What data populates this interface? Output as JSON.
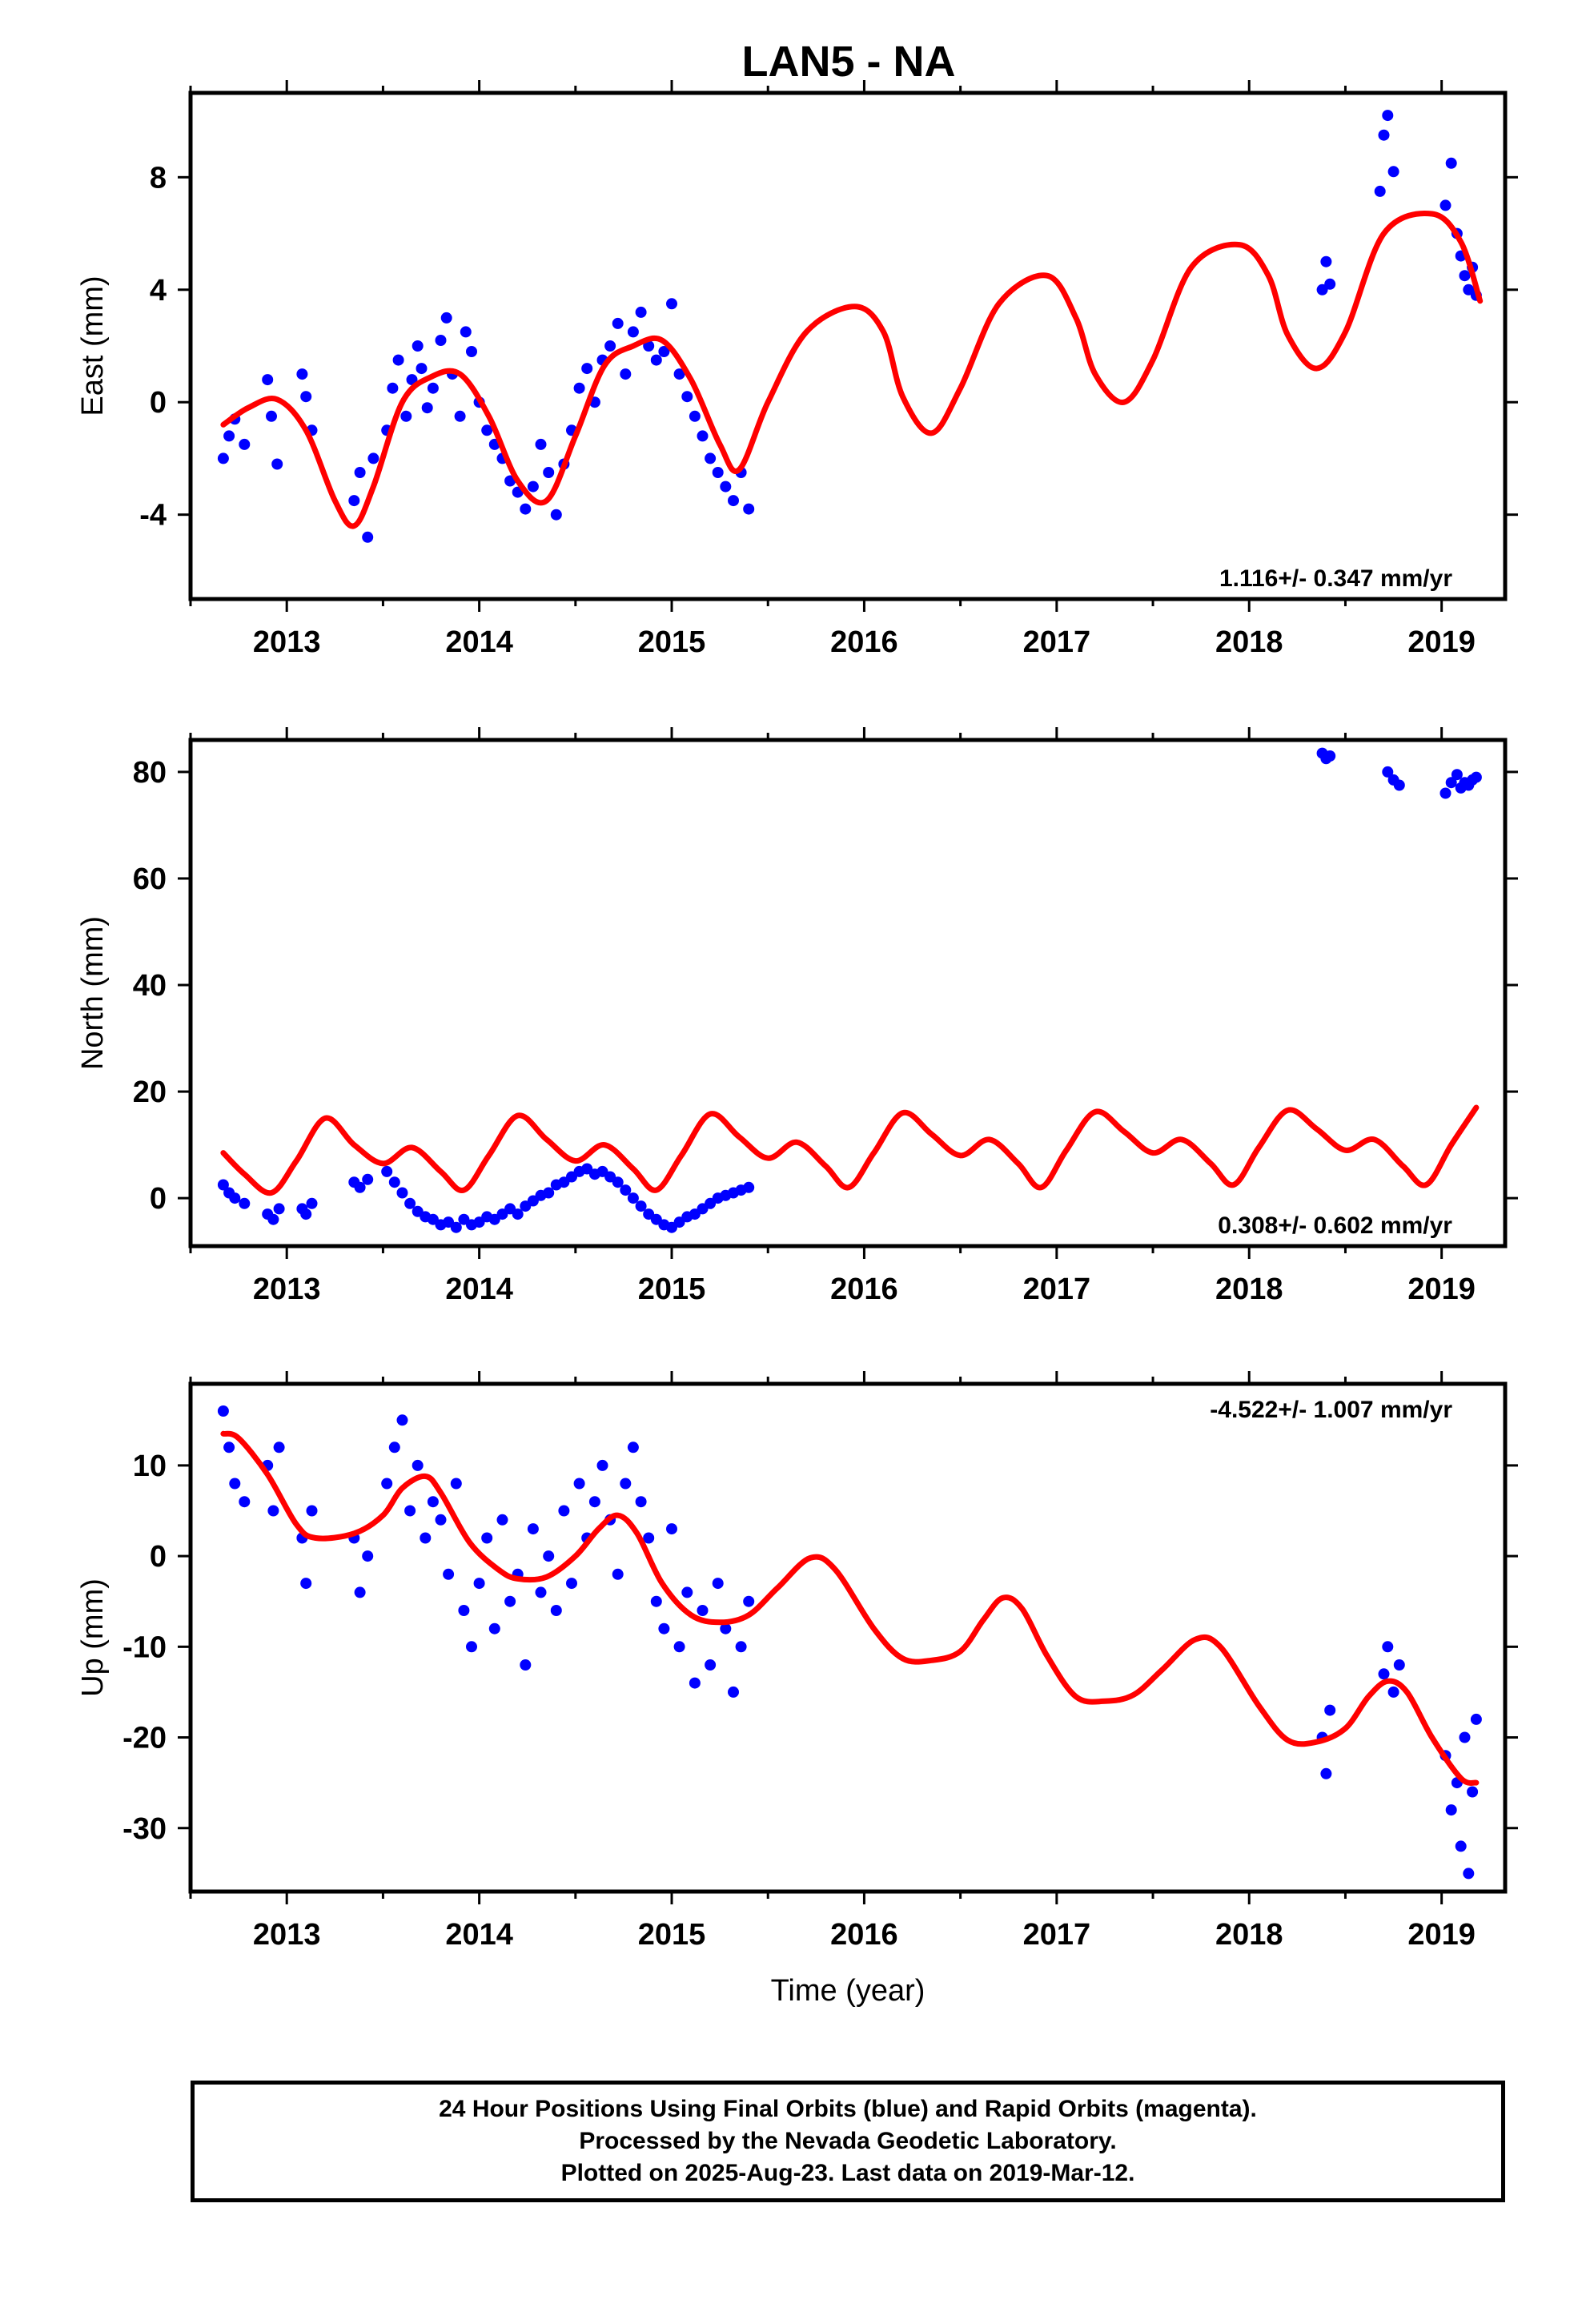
{
  "title": "LAN5 - NA",
  "colors": {
    "data": "#0000ff",
    "model": "#ff0000",
    "frame": "#000000"
  },
  "footer": {
    "line1": "24 Hour Positions Using Final Orbits (blue) and Rapid Orbits (magenta).",
    "line2": "Processed by the Nevada Geodetic Laboratory.",
    "line3": "Plotted on 2025-Aug-23. Last data on 2019-Mar-12."
  },
  "chart_data": [
    {
      "type": "scatter",
      "ylabel": "East (mm)",
      "xlabel": "",
      "xlim": [
        2012.5,
        2019.33
      ],
      "ylim": [
        -7,
        11
      ],
      "xticks": [
        "2013",
        "2014",
        "2015",
        "2016",
        "2017",
        "2018",
        "2019"
      ],
      "yticks": [
        "-4",
        "0",
        "4",
        "8"
      ],
      "rate": "1.116+/- 0.347 mm/yr",
      "rate_position": "bottom-right",
      "series": [
        {
          "kind": "points",
          "x": [
            2012.67,
            2012.7,
            2012.73,
            2012.78,
            2012.9,
            2012.92,
            2012.95,
            2013.08,
            2013.1,
            2013.13,
            2013.35,
            2013.38,
            2013.42,
            2013.45,
            2013.52,
            2013.55,
            2013.58,
            2013.62,
            2013.65,
            2013.68,
            2013.7,
            2013.73,
            2013.76,
            2013.8,
            2013.83,
            2013.86,
            2013.9,
            2013.93,
            2013.96,
            2014.0,
            2014.04,
            2014.08,
            2014.12,
            2014.16,
            2014.2,
            2014.24,
            2014.28,
            2014.32,
            2014.36,
            2014.4,
            2014.44,
            2014.48,
            2014.52,
            2014.56,
            2014.6,
            2014.64,
            2014.68,
            2014.72,
            2014.76,
            2014.8,
            2014.84,
            2014.88,
            2014.92,
            2014.96,
            2015.0,
            2015.04,
            2015.08,
            2015.12,
            2015.16,
            2015.2,
            2015.24,
            2015.28,
            2015.32,
            2015.36,
            2015.4,
            2018.38,
            2018.4,
            2018.42,
            2018.68,
            2018.7,
            2018.72,
            2018.75,
            2019.02,
            2019.05,
            2019.08,
            2019.1,
            2019.12,
            2019.14,
            2019.16,
            2019.18
          ],
          "y": [
            -2.0,
            -1.2,
            -0.6,
            -1.5,
            0.8,
            -0.5,
            -2.2,
            1.0,
            0.2,
            -1.0,
            -3.5,
            -2.5,
            -4.8,
            -2.0,
            -1.0,
            0.5,
            1.5,
            -0.5,
            0.8,
            2.0,
            1.2,
            -0.2,
            0.5,
            2.2,
            3.0,
            1.0,
            -0.5,
            2.5,
            1.8,
            0.0,
            -1.0,
            -1.5,
            -2.0,
            -2.8,
            -3.2,
            -3.8,
            -3.0,
            -1.5,
            -2.5,
            -4.0,
            -2.2,
            -1.0,
            0.5,
            1.2,
            0.0,
            1.5,
            2.0,
            2.8,
            1.0,
            2.5,
            3.2,
            2.0,
            1.5,
            1.8,
            3.5,
            1.0,
            0.2,
            -0.5,
            -1.2,
            -2.0,
            -2.5,
            -3.0,
            -3.5,
            -2.5,
            -3.8,
            4.0,
            5.0,
            4.2,
            7.5,
            9.5,
            10.2,
            8.2,
            7.0,
            8.5,
            6.0,
            5.2,
            4.5,
            4.0,
            4.8,
            3.8
          ]
        },
        {
          "kind": "model",
          "x": [
            2012.67,
            2012.8,
            2012.95,
            2013.1,
            2013.25,
            2013.35,
            2013.45,
            2013.6,
            2013.75,
            2013.9,
            2014.05,
            2014.2,
            2014.35,
            2014.5,
            2014.65,
            2014.8,
            2014.95,
            2015.1,
            2015.25,
            2015.35,
            2015.5,
            2015.7,
            2015.95,
            2016.1,
            2016.2,
            2016.35,
            2016.5,
            2016.7,
            2016.95,
            2017.1,
            2017.2,
            2017.35,
            2017.5,
            2017.7,
            2017.95,
            2018.1,
            2018.2,
            2018.35,
            2018.5,
            2018.7,
            2018.95,
            2019.1,
            2019.2
          ],
          "y": [
            -0.8,
            -0.2,
            0.1,
            -1.0,
            -3.5,
            -4.4,
            -3.0,
            0.0,
            0.9,
            1.0,
            -0.5,
            -2.8,
            -3.5,
            -1.2,
            1.3,
            2.0,
            2.2,
            0.8,
            -1.5,
            -2.4,
            0.0,
            2.5,
            3.4,
            2.5,
            0.2,
            -1.1,
            0.5,
            3.5,
            4.5,
            3.0,
            1.0,
            0.0,
            1.5,
            4.8,
            5.6,
            4.5,
            2.4,
            1.2,
            2.5,
            6.0,
            6.7,
            5.7,
            3.6
          ]
        }
      ]
    },
    {
      "type": "scatter",
      "ylabel": "North (mm)",
      "xlabel": "",
      "xlim": [
        2012.5,
        2019.33
      ],
      "ylim": [
        -9,
        86
      ],
      "xticks": [
        "2013",
        "2014",
        "2015",
        "2016",
        "2017",
        "2018",
        "2019"
      ],
      "yticks": [
        "0",
        "20",
        "40",
        "60",
        "80"
      ],
      "rate": "0.308+/- 0.602 mm/yr",
      "rate_position": "bottom-right",
      "series": [
        {
          "kind": "points",
          "x": [
            2012.67,
            2012.7,
            2012.73,
            2012.78,
            2012.9,
            2012.93,
            2012.96,
            2013.08,
            2013.1,
            2013.13,
            2013.35,
            2013.38,
            2013.42,
            2013.52,
            2013.56,
            2013.6,
            2013.64,
            2013.68,
            2013.72,
            2013.76,
            2013.8,
            2013.84,
            2013.88,
            2013.92,
            2013.96,
            2014.0,
            2014.04,
            2014.08,
            2014.12,
            2014.16,
            2014.2,
            2014.24,
            2014.28,
            2014.32,
            2014.36,
            2014.4,
            2014.44,
            2014.48,
            2014.52,
            2014.56,
            2014.6,
            2014.64,
            2014.68,
            2014.72,
            2014.76,
            2014.8,
            2014.84,
            2014.88,
            2014.92,
            2014.96,
            2015.0,
            2015.04,
            2015.08,
            2015.12,
            2015.16,
            2015.2,
            2015.24,
            2015.28,
            2015.32,
            2015.36,
            2015.4,
            2018.38,
            2018.4,
            2018.42,
            2018.72,
            2018.75,
            2018.78,
            2019.02,
            2019.05,
            2019.08,
            2019.1,
            2019.12,
            2019.14,
            2019.16,
            2019.18
          ],
          "y": [
            2.5,
            1.0,
            0.0,
            -1.0,
            -3.0,
            -4.0,
            -2.0,
            -2.0,
            -3.0,
            -1.0,
            3.0,
            2.0,
            3.5,
            5.0,
            3.0,
            1.0,
            -1.0,
            -2.5,
            -3.5,
            -4.0,
            -5.0,
            -4.5,
            -5.5,
            -4.0,
            -5.0,
            -4.5,
            -3.5,
            -4.0,
            -3.0,
            -2.0,
            -3.0,
            -1.5,
            -0.5,
            0.5,
            1.0,
            2.5,
            3.0,
            4.0,
            5.0,
            5.5,
            4.5,
            5.0,
            4.0,
            3.0,
            1.5,
            0.0,
            -1.5,
            -3.0,
            -4.0,
            -5.0,
            -5.5,
            -4.5,
            -3.5,
            -3.0,
            -2.0,
            -1.0,
            0.0,
            0.5,
            1.0,
            1.5,
            2.0,
            83.5,
            82.5,
            83.0,
            80.0,
            78.5,
            77.5,
            76.0,
            78.0,
            79.5,
            77.0,
            78.0,
            77.5,
            78.5,
            79.0
          ]
        },
        {
          "kind": "model",
          "x": [
            2012.67,
            2012.78,
            2012.92,
            2013.05,
            2013.2,
            2013.35,
            2013.5,
            2013.65,
            2013.8,
            2013.92,
            2014.05,
            2014.2,
            2014.35,
            2014.5,
            2014.65,
            2014.8,
            2014.92,
            2015.05,
            2015.2,
            2015.35,
            2015.5,
            2015.65,
            2015.8,
            2015.92,
            2016.05,
            2016.2,
            2016.35,
            2016.5,
            2016.65,
            2016.8,
            2016.92,
            2017.05,
            2017.2,
            2017.35,
            2017.5,
            2017.65,
            2017.8,
            2017.92,
            2018.05,
            2018.2,
            2018.35,
            2018.5,
            2018.65,
            2018.8,
            2018.92,
            2019.05,
            2019.18
          ],
          "y": [
            8.5,
            4.5,
            1.0,
            7.0,
            15.0,
            10.0,
            6.5,
            9.5,
            5.0,
            1.5,
            8.0,
            15.5,
            11.0,
            7.0,
            10.0,
            5.5,
            1.5,
            8.0,
            15.8,
            11.5,
            7.5,
            10.5,
            6.0,
            2.0,
            8.5,
            16.0,
            12.0,
            8.0,
            11.0,
            6.5,
            2.0,
            9.0,
            16.2,
            12.5,
            8.5,
            11.0,
            6.5,
            2.5,
            9.5,
            16.5,
            13.0,
            9.0,
            11.0,
            6.0,
            2.5,
            10.0,
            17.0
          ]
        }
      ]
    },
    {
      "type": "scatter",
      "ylabel": "Up (mm)",
      "xlabel": "Time (year)",
      "xlim": [
        2012.5,
        2019.33
      ],
      "ylim": [
        -37,
        19
      ],
      "xticks": [
        "2013",
        "2014",
        "2015",
        "2016",
        "2017",
        "2018",
        "2019"
      ],
      "yticks": [
        "-30",
        "-20",
        "-10",
        "0",
        "10"
      ],
      "rate": "-4.522+/- 1.007 mm/yr",
      "rate_position": "top-right",
      "series": [
        {
          "kind": "points",
          "x": [
            2012.67,
            2012.7,
            2012.73,
            2012.78,
            2012.9,
            2012.93,
            2012.96,
            2013.08,
            2013.1,
            2013.13,
            2013.35,
            2013.38,
            2013.42,
            2013.52,
            2013.56,
            2013.6,
            2013.64,
            2013.68,
            2013.72,
            2013.76,
            2013.8,
            2013.84,
            2013.88,
            2013.92,
            2013.96,
            2014.0,
            2014.04,
            2014.08,
            2014.12,
            2014.16,
            2014.2,
            2014.24,
            2014.28,
            2014.32,
            2014.36,
            2014.4,
            2014.44,
            2014.48,
            2014.52,
            2014.56,
            2014.6,
            2014.64,
            2014.68,
            2014.72,
            2014.76,
            2014.8,
            2014.84,
            2014.88,
            2014.92,
            2014.96,
            2015.0,
            2015.04,
            2015.08,
            2015.12,
            2015.16,
            2015.2,
            2015.24,
            2015.28,
            2015.32,
            2015.36,
            2015.4,
            2018.38,
            2018.4,
            2018.42,
            2018.7,
            2018.72,
            2018.75,
            2018.78,
            2019.02,
            2019.05,
            2019.08,
            2019.1,
            2019.12,
            2019.14,
            2019.16,
            2019.18
          ],
          "y": [
            16.0,
            12.0,
            8.0,
            6.0,
            10.0,
            5.0,
            12.0,
            2.0,
            -3.0,
            5.0,
            2.0,
            -4.0,
            0.0,
            8.0,
            12.0,
            15.0,
            5.0,
            10.0,
            2.0,
            6.0,
            4.0,
            -2.0,
            8.0,
            -6.0,
            -10.0,
            -3.0,
            2.0,
            -8.0,
            4.0,
            -5.0,
            -2.0,
            -12.0,
            3.0,
            -4.0,
            0.0,
            -6.0,
            5.0,
            -3.0,
            8.0,
            2.0,
            6.0,
            10.0,
            4.0,
            -2.0,
            8.0,
            12.0,
            6.0,
            2.0,
            -5.0,
            -8.0,
            3.0,
            -10.0,
            -4.0,
            -14.0,
            -6.0,
            -12.0,
            -3.0,
            -8.0,
            -15.0,
            -10.0,
            -5.0,
            -20.0,
            -24.0,
            -17.0,
            -13.0,
            -10.0,
            -15.0,
            -12.0,
            -22.0,
            -28.0,
            -25.0,
            -32.0,
            -20.0,
            -35.0,
            -26.0,
            -18.0
          ]
        },
        {
          "kind": "model",
          "x": [
            2012.67,
            2012.75,
            2012.9,
            2013.05,
            2013.15,
            2013.35,
            2013.5,
            2013.6,
            2013.72,
            2013.8,
            2013.95,
            2014.1,
            2014.2,
            2014.35,
            2014.5,
            2014.62,
            2014.72,
            2014.82,
            2014.95,
            2015.1,
            2015.25,
            2015.4,
            2015.55,
            2015.72,
            2015.85,
            2016.05,
            2016.2,
            2016.35,
            2016.5,
            2016.62,
            2016.72,
            2016.82,
            2016.95,
            2017.1,
            2017.25,
            2017.4,
            2017.55,
            2017.72,
            2017.85,
            2018.05,
            2018.2,
            2018.35,
            2018.5,
            2018.62,
            2018.72,
            2018.82,
            2018.95,
            2019.1,
            2019.18
          ],
          "y": [
            13.5,
            13.0,
            9.0,
            3.5,
            2.0,
            2.5,
            4.5,
            7.5,
            8.8,
            7.0,
            1.5,
            -1.5,
            -2.5,
            -2.3,
            0.0,
            3.0,
            4.5,
            2.5,
            -3.0,
            -6.5,
            -7.3,
            -6.5,
            -3.5,
            -0.2,
            -1.5,
            -8.0,
            -11.3,
            -11.5,
            -10.5,
            -7.0,
            -4.6,
            -5.8,
            -11.0,
            -15.5,
            -16.0,
            -15.3,
            -12.5,
            -9.2,
            -10.0,
            -16.5,
            -20.3,
            -20.5,
            -19.0,
            -15.5,
            -13.8,
            -15.0,
            -20.0,
            -24.5,
            -25.0
          ]
        }
      ]
    }
  ]
}
